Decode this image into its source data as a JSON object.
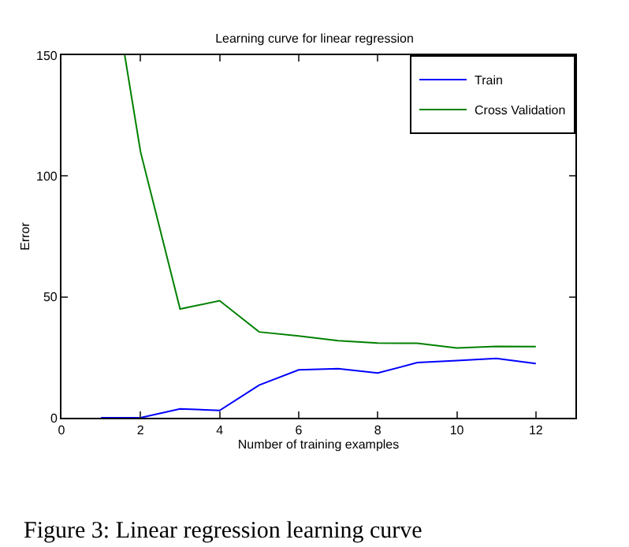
{
  "chart_data": {
    "type": "line",
    "title": "Learning curve for linear regression",
    "xlabel": "Number of training examples",
    "ylabel": "Error",
    "xlim": [
      0,
      13
    ],
    "xticks": [
      0,
      2,
      4,
      6,
      8,
      10,
      12
    ],
    "ylim": [
      0,
      150
    ],
    "yticks": [
      0,
      50,
      100,
      150
    ],
    "grid": false,
    "legend": "top right",
    "marker": "none",
    "line_style": "solid",
    "series": [
      {
        "name": "Train",
        "color": "#0000ff",
        "x": [
          1,
          2,
          3,
          4,
          5,
          6,
          7,
          8,
          9,
          10,
          11,
          12
        ],
        "values": [
          0,
          0,
          3.7,
          3,
          13.5,
          19.8,
          20.3,
          18.5,
          22.8,
          23.6,
          24.5,
          22.4
        ]
      },
      {
        "name": "Cross Validation",
        "color": "#008000",
        "x": [
          1.6,
          2,
          3,
          4,
          5,
          6,
          7,
          8,
          9,
          10,
          11,
          12
        ],
        "values": [
          150,
          110,
          45,
          48.4,
          35.5,
          33.8,
          31.9,
          30.9,
          30.8,
          28.9,
          29.5,
          29.4
        ]
      }
    ],
    "annotations": [
      "Figure 3: Linear regression learning curve"
    ]
  }
}
